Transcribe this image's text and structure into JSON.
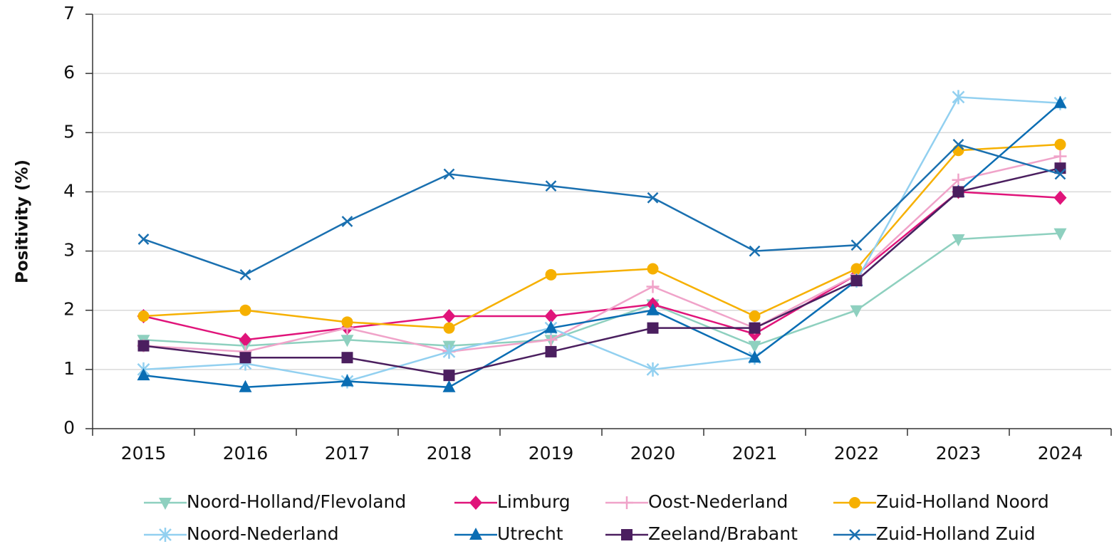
{
  "chart_data": {
    "type": "line",
    "ylabel": "Positivity (%)",
    "categories": [
      "2015",
      "2016",
      "2017",
      "2018",
      "2019",
      "2020",
      "2021",
      "2022",
      "2023",
      "2024"
    ],
    "ylim": [
      0,
      7
    ],
    "yticks": [
      0,
      1,
      2,
      3,
      4,
      5,
      6,
      7
    ],
    "grid": true,
    "legend": "bottom",
    "series": [
      {
        "name": "Noord-Holland/Flevoland",
        "color": "#8ed0bf",
        "marker": "triangle-down",
        "values": [
          1.5,
          1.4,
          1.5,
          1.4,
          1.5,
          2.1,
          1.4,
          2.0,
          3.2,
          3.3
        ]
      },
      {
        "name": "Limburg",
        "color": "#e0147a",
        "marker": "diamond",
        "values": [
          1.9,
          1.5,
          1.7,
          1.9,
          1.9,
          2.1,
          1.6,
          2.6,
          4.0,
          3.9
        ]
      },
      {
        "name": "Oost-Nederland",
        "color": "#f0a3c9",
        "marker": "plus",
        "values": [
          1.4,
          1.3,
          1.7,
          1.3,
          1.5,
          2.4,
          1.7,
          2.6,
          4.2,
          4.6
        ]
      },
      {
        "name": "Zuid-Holland Noord",
        "color": "#f6b000",
        "marker": "circle",
        "values": [
          1.9,
          2.0,
          1.8,
          1.7,
          2.6,
          2.7,
          1.9,
          2.7,
          4.7,
          4.8
        ]
      },
      {
        "name": "Noord-Nederland",
        "color": "#92d0f0",
        "marker": "star",
        "values": [
          1.0,
          1.1,
          0.8,
          1.3,
          1.7,
          1.0,
          1.2,
          2.5,
          5.6,
          5.5
        ]
      },
      {
        "name": "Utrecht",
        "color": "#0a6db3",
        "marker": "triangle-up",
        "values": [
          0.9,
          0.7,
          0.8,
          0.7,
          1.7,
          2.0,
          1.2,
          2.5,
          4.0,
          5.5
        ]
      },
      {
        "name": "Zeeland/Brabant",
        "color": "#4b1f5f",
        "marker": "square",
        "values": [
          1.4,
          1.2,
          1.2,
          0.9,
          1.3,
          1.7,
          1.7,
          2.5,
          4.0,
          4.4
        ]
      },
      {
        "name": "Zuid-Holland Zuid",
        "color": "#1a70b0",
        "marker": "x",
        "values": [
          3.2,
          2.6,
          3.5,
          4.3,
          4.1,
          3.9,
          3.0,
          3.1,
          4.8,
          4.3
        ]
      }
    ]
  }
}
